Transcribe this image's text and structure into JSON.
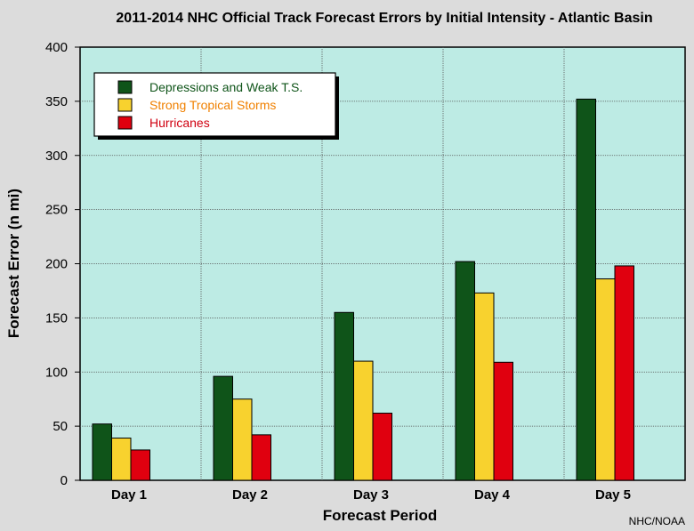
{
  "chart_data": {
    "type": "bar",
    "title": "2011-2014 NHC Official Track Forecast Errors by Initial Intensity - Atlantic Basin",
    "xlabel": "Forecast Period",
    "ylabel": "Forecast Error (n mi)",
    "ylim": [
      0,
      400
    ],
    "yticks": [
      0,
      50,
      100,
      150,
      200,
      250,
      300,
      350,
      400
    ],
    "categories": [
      "Day 1",
      "Day 2",
      "Day 3",
      "Day 4",
      "Day 5"
    ],
    "series": [
      {
        "name": "Depressions and Weak T.S.",
        "color": "#0f5419",
        "values": [
          52,
          96,
          155,
          202,
          352
        ]
      },
      {
        "name": "Strong Tropical Storms",
        "color": "#f8d22e",
        "values": [
          39,
          75,
          110,
          173,
          186
        ]
      },
      {
        "name": "Hurricanes",
        "color": "#e0000f",
        "values": [
          28,
          42,
          62,
          109,
          198
        ]
      }
    ],
    "legend": {
      "position": "top-left",
      "text_colors": [
        "#0f5419",
        "#f08000",
        "#d00010"
      ]
    },
    "grid": true,
    "plot_background": "#bdebe4",
    "credit": "NHC/NOAA"
  }
}
